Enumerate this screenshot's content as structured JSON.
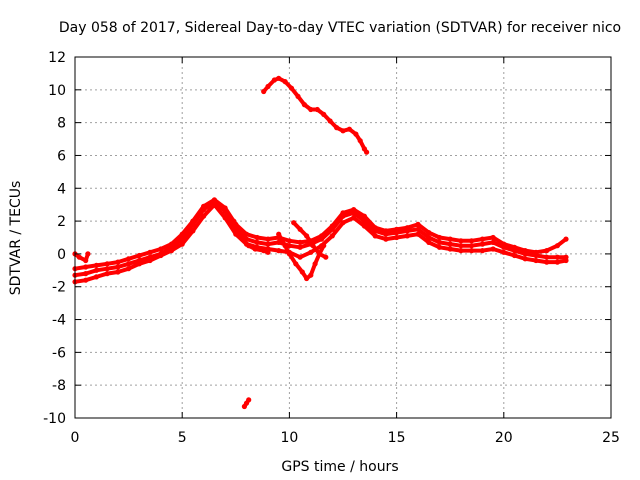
{
  "chart_data": {
    "type": "scatter",
    "title": "Day 058 of 2017, Sidereal Day-to-day VTEC variation (SDTVAR) for receiver nico",
    "xlabel": "GPS time / hours",
    "ylabel": "SDTVAR / TECUs",
    "xlim": [
      0,
      25
    ],
    "ylim": [
      -10,
      12
    ],
    "xticks": [
      0,
      5,
      10,
      15,
      20,
      25
    ],
    "yticks": [
      -10,
      -8,
      -6,
      -4,
      -2,
      0,
      2,
      4,
      6,
      8,
      10,
      12
    ],
    "grid": true,
    "legend": "none",
    "colors": {
      "series": "#ff0000",
      "axis": "#000000",
      "grid": "#a0a0a0"
    },
    "series": [
      {
        "name": "track-main-a",
        "points": [
          [
            0.0,
            -1.3
          ],
          [
            0.5,
            -1.2
          ],
          [
            1.0,
            -1.0
          ],
          [
            1.5,
            -0.9
          ],
          [
            2.0,
            -0.8
          ],
          [
            2.5,
            -0.6
          ],
          [
            3.0,
            -0.4
          ],
          [
            3.5,
            -0.2
          ],
          [
            4.0,
            0.0
          ],
          [
            4.5,
            0.4
          ],
          [
            5.0,
            0.9
          ],
          [
            5.5,
            1.8
          ],
          [
            6.0,
            2.7
          ],
          [
            6.5,
            3.2
          ],
          [
            7.0,
            2.6
          ],
          [
            7.5,
            1.5
          ],
          [
            8.0,
            0.9
          ],
          [
            8.5,
            0.7
          ],
          [
            9.0,
            0.6
          ],
          [
            9.5,
            0.7
          ],
          [
            10.0,
            0.5
          ],
          [
            10.5,
            0.4
          ],
          [
            11.0,
            0.6
          ],
          [
            11.5,
            0.9
          ],
          [
            12.0,
            1.5
          ],
          [
            12.5,
            2.3
          ],
          [
            13.0,
            2.5
          ],
          [
            13.5,
            2.0
          ],
          [
            14.0,
            1.4
          ],
          [
            14.5,
            1.2
          ],
          [
            15.0,
            1.3
          ],
          [
            15.5,
            1.4
          ],
          [
            16.0,
            1.5
          ],
          [
            16.5,
            1.0
          ],
          [
            17.0,
            0.7
          ],
          [
            17.5,
            0.6
          ],
          [
            18.0,
            0.5
          ],
          [
            18.5,
            0.5
          ],
          [
            19.0,
            0.6
          ],
          [
            19.5,
            0.7
          ],
          [
            20.0,
            0.4
          ],
          [
            20.5,
            0.2
          ],
          [
            21.0,
            0.0
          ],
          [
            21.5,
            -0.1
          ],
          [
            22.0,
            -0.2
          ],
          [
            22.5,
            -0.2
          ],
          [
            22.9,
            -0.2
          ]
        ]
      },
      {
        "name": "track-main-b",
        "points": [
          [
            0.0,
            -1.7
          ],
          [
            0.5,
            -1.6
          ],
          [
            1.0,
            -1.4
          ],
          [
            1.5,
            -1.2
          ],
          [
            2.0,
            -1.1
          ],
          [
            2.5,
            -0.9
          ],
          [
            3.0,
            -0.6
          ],
          [
            3.5,
            -0.4
          ],
          [
            4.0,
            -0.1
          ],
          [
            4.5,
            0.2
          ],
          [
            5.0,
            0.6
          ],
          [
            5.5,
            1.4
          ],
          [
            6.0,
            2.3
          ],
          [
            6.5,
            3.0
          ],
          [
            7.0,
            2.2
          ],
          [
            7.5,
            1.2
          ],
          [
            8.0,
            0.6
          ],
          [
            8.5,
            0.4
          ],
          [
            9.0,
            0.3
          ],
          [
            9.5,
            0.2
          ],
          [
            10.0,
            0.1
          ],
          [
            10.5,
            -0.2
          ],
          [
            11.0,
            0.1
          ],
          [
            11.5,
            0.5
          ],
          [
            12.0,
            1.1
          ],
          [
            12.5,
            1.9
          ],
          [
            13.0,
            2.2
          ],
          [
            13.5,
            1.7
          ],
          [
            14.0,
            1.1
          ],
          [
            14.5,
            0.9
          ],
          [
            15.0,
            1.0
          ],
          [
            15.5,
            1.1
          ],
          [
            16.0,
            1.2
          ],
          [
            16.5,
            0.7
          ],
          [
            17.0,
            0.4
          ],
          [
            17.5,
            0.3
          ],
          [
            18.0,
            0.2
          ],
          [
            18.5,
            0.2
          ],
          [
            19.0,
            0.2
          ],
          [
            19.5,
            0.3
          ],
          [
            20.0,
            0.1
          ],
          [
            20.5,
            -0.1
          ],
          [
            21.0,
            -0.3
          ],
          [
            21.5,
            -0.4
          ],
          [
            22.0,
            -0.5
          ],
          [
            22.5,
            -0.5
          ],
          [
            22.9,
            -0.4
          ]
        ]
      },
      {
        "name": "track-main-c",
        "points": [
          [
            0.0,
            -0.9
          ],
          [
            0.5,
            -0.8
          ],
          [
            1.0,
            -0.7
          ],
          [
            1.5,
            -0.6
          ],
          [
            2.0,
            -0.5
          ],
          [
            2.5,
            -0.3
          ],
          [
            3.0,
            -0.1
          ],
          [
            3.5,
            0.1
          ],
          [
            4.0,
            0.3
          ],
          [
            4.5,
            0.6
          ],
          [
            5.0,
            1.2
          ],
          [
            5.5,
            2.0
          ],
          [
            6.0,
            2.9
          ],
          [
            6.5,
            3.3
          ],
          [
            7.0,
            2.8
          ],
          [
            7.5,
            1.8
          ],
          [
            8.0,
            1.2
          ],
          [
            8.5,
            1.0
          ],
          [
            9.0,
            0.9
          ],
          [
            9.5,
            1.0
          ],
          [
            10.0,
            0.8
          ],
          [
            10.5,
            0.7
          ],
          [
            11.0,
            0.8
          ],
          [
            11.5,
            1.1
          ],
          [
            12.0,
            1.7
          ],
          [
            12.5,
            2.5
          ],
          [
            13.0,
            2.7
          ],
          [
            13.5,
            2.3
          ],
          [
            14.0,
            1.6
          ],
          [
            14.5,
            1.4
          ],
          [
            15.0,
            1.5
          ],
          [
            15.5,
            1.6
          ],
          [
            16.0,
            1.8
          ],
          [
            16.5,
            1.3
          ],
          [
            17.0,
            1.0
          ],
          [
            17.5,
            0.9
          ],
          [
            18.0,
            0.8
          ],
          [
            18.5,
            0.8
          ],
          [
            19.0,
            0.9
          ],
          [
            19.5,
            1.0
          ],
          [
            20.0,
            0.6
          ],
          [
            20.5,
            0.4
          ],
          [
            21.0,
            0.2
          ],
          [
            21.5,
            0.1
          ],
          [
            22.0,
            0.2
          ],
          [
            22.5,
            0.5
          ],
          [
            22.9,
            0.9
          ]
        ]
      },
      {
        "name": "track-dip",
        "points": [
          [
            9.5,
            1.2
          ],
          [
            9.8,
            0.5
          ],
          [
            10.0,
            0.0
          ],
          [
            10.3,
            -0.6
          ],
          [
            10.6,
            -1.1
          ],
          [
            10.8,
            -1.5
          ],
          [
            11.0,
            -1.3
          ],
          [
            11.2,
            -0.6
          ],
          [
            11.4,
            0.0
          ],
          [
            11.6,
            0.5
          ]
        ]
      },
      {
        "name": "track-rise",
        "points": [
          [
            10.2,
            1.9
          ],
          [
            10.5,
            1.5
          ],
          [
            10.8,
            1.1
          ],
          [
            11.1,
            0.5
          ],
          [
            11.4,
            0.0
          ],
          [
            11.7,
            -0.2
          ]
        ]
      },
      {
        "name": "track-seg-7",
        "points": [
          [
            7.4,
            2.0
          ],
          [
            7.6,
            1.4
          ],
          [
            7.8,
            0.9
          ],
          [
            8.1,
            0.5
          ],
          [
            8.4,
            0.3
          ],
          [
            8.8,
            0.2
          ],
          [
            9.0,
            0.1
          ]
        ]
      },
      {
        "name": "track-start",
        "points": [
          [
            0.0,
            0.0
          ],
          [
            0.2,
            -0.2
          ],
          [
            0.5,
            -0.4
          ],
          [
            0.6,
            0.0
          ]
        ]
      },
      {
        "name": "track-high",
        "points": [
          [
            8.8,
            9.9
          ],
          [
            9.0,
            10.2
          ],
          [
            9.3,
            10.6
          ],
          [
            9.5,
            10.7
          ],
          [
            9.8,
            10.5
          ],
          [
            10.1,
            10.1
          ],
          [
            10.4,
            9.6
          ],
          [
            10.7,
            9.1
          ],
          [
            11.0,
            8.8
          ],
          [
            11.3,
            8.8
          ],
          [
            11.6,
            8.5
          ],
          [
            11.9,
            8.1
          ],
          [
            12.2,
            7.7
          ],
          [
            12.5,
            7.5
          ],
          [
            12.8,
            7.6
          ],
          [
            13.1,
            7.3
          ],
          [
            13.3,
            6.9
          ],
          [
            13.5,
            6.4
          ],
          [
            13.6,
            6.2
          ]
        ]
      },
      {
        "name": "track-low",
        "points": [
          [
            7.9,
            -9.3
          ],
          [
            8.0,
            -9.1
          ],
          [
            8.1,
            -8.9
          ]
        ]
      }
    ]
  }
}
